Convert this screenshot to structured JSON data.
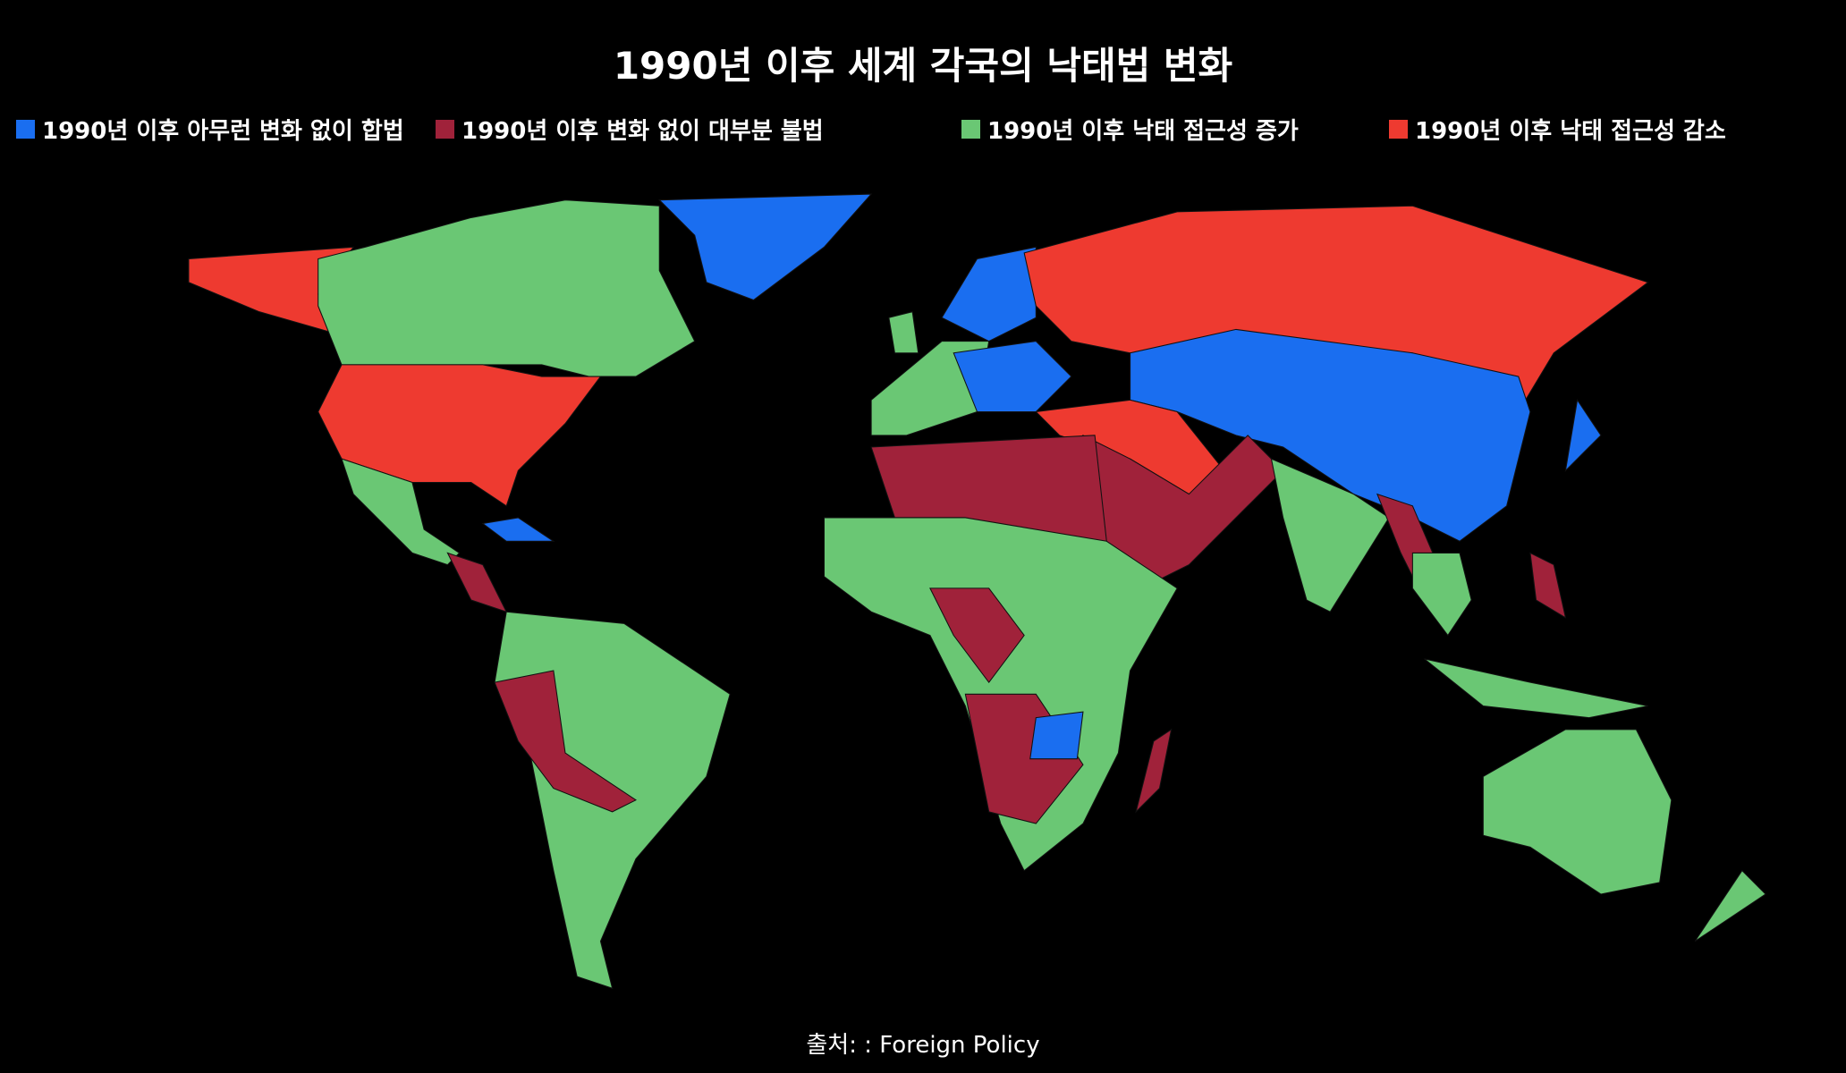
{
  "title": "1990년 이후 세계 각국의 낙태법 변화",
  "legend": [
    {
      "label": "1990년 이후 아무런 변화 없이 합법",
      "color": "#1a6ef0"
    },
    {
      "label": "1990년 이후 변화 없이 대부분 불법",
      "color": "#a0223a"
    },
    {
      "label": "1990년 이후 낙태 접근성 증가",
      "color": "#6ac774"
    },
    {
      "label": "1990년 이후 낙태 접근성 감소",
      "color": "#ee3a30"
    }
  ],
  "source": "출처: : Foreign Policy"
}
